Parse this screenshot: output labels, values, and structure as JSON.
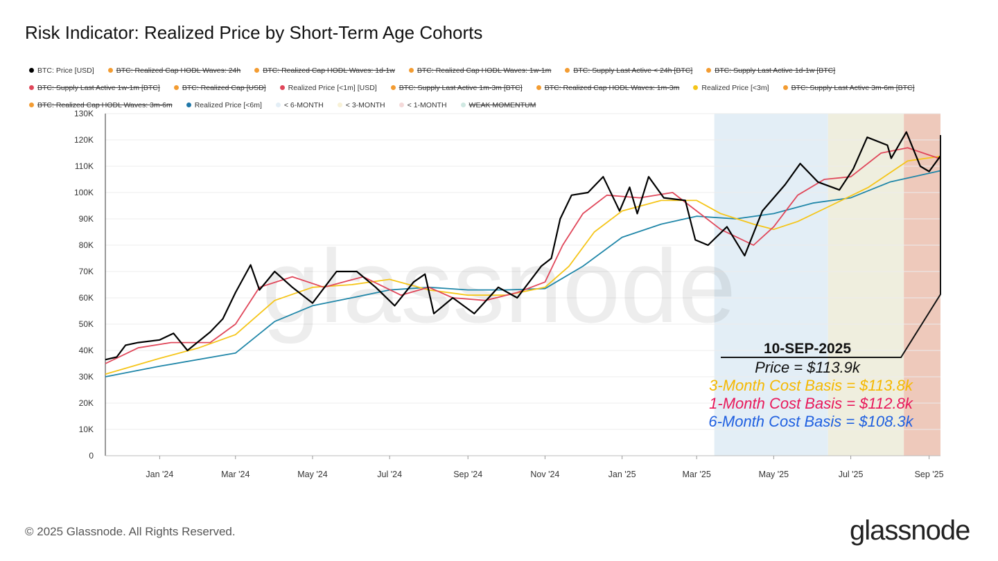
{
  "title": "Risk Indicator: Realized Price by Short-Term Age Cohorts",
  "footer": "© 2025 Glassnode. All Rights Reserved.",
  "logo": "glassnode",
  "watermark": "glassnode",
  "legend": [
    {
      "label": "BTC: Price [USD]",
      "color": "#000000",
      "active": true
    },
    {
      "label": "BTC: Realized Cap HODL Waves: 24h",
      "color": "#f39c32",
      "active": false
    },
    {
      "label": "BTC: Realized Cap HODL Waves: 1d-1w",
      "color": "#f39c32",
      "active": false
    },
    {
      "label": "BTC: Realized Cap HODL Waves: 1w-1m",
      "color": "#f39c32",
      "active": false
    },
    {
      "label": "BTC: Supply Last Active < 24h [BTC]",
      "color": "#f39c32",
      "active": false
    },
    {
      "label": "BTC: Supply Last Active 1d-1w [BTC]",
      "color": "#f39c32",
      "active": false
    },
    {
      "label": "BTC: Supply Last Active 1w-1m [BTC]",
      "color": "#e0475a",
      "active": false
    },
    {
      "label": "BTC: Realized Cap [USD]",
      "color": "#f39c32",
      "active": false
    },
    {
      "label": "Realized Price [<1m] [USD]",
      "color": "#e0475a",
      "active": true
    },
    {
      "label": "BTC: Supply Last Active 1m-3m [BTC]",
      "color": "#f39c32",
      "active": false
    },
    {
      "label": "BTC: Realized Cap HODL Waves: 1m-3m",
      "color": "#f39c32",
      "active": false
    },
    {
      "label": "Realized Price [<3m]",
      "color": "#f5c518",
      "active": true
    },
    {
      "label": "BTC: Supply Last Active 3m-6m [BTC]",
      "color": "#f39c32",
      "active": false
    },
    {
      "label": "BTC: Realized Cap HODL Waves: 3m-6m",
      "color": "#f39c32",
      "active": false
    },
    {
      "label": "Realized Price [<6m]",
      "color": "#1f77a8",
      "active": true
    },
    {
      "label": "< 6-MONTH",
      "color": "#e3eef6",
      "active": true
    },
    {
      "label": "< 3-MONTH",
      "color": "#f8f1d6",
      "active": true
    },
    {
      "label": "< 1-MONTH",
      "color": "#f4d9d9",
      "active": true
    },
    {
      "label": "WEAK MOMENTUM",
      "color": "#cfe8e2",
      "active": false
    }
  ],
  "annotation": {
    "date": "10-SEP-2025",
    "price": "Price = $113.9k",
    "m3": "3-Month Cost Basis = $113.8k",
    "m1": "1-Month Cost Basis = $112.8k",
    "m6": "6-Month Cost Basis =  $108.3k",
    "colors": {
      "price": "#111111",
      "m3": "#f5b800",
      "m1": "#e8185a",
      "m6": "#1f5fe0"
    }
  },
  "chart_data": {
    "type": "line",
    "xlim": [
      "2023-11-19",
      "2025-09-10"
    ],
    "ylim": [
      0,
      130000
    ],
    "yticks": [
      0,
      10000,
      20000,
      30000,
      40000,
      50000,
      60000,
      70000,
      80000,
      90000,
      100000,
      110000,
      120000,
      130000
    ],
    "ytick_labels": [
      "0",
      "10K",
      "20K",
      "30K",
      "40K",
      "50K",
      "60K",
      "70K",
      "80K",
      "90K",
      "100K",
      "110K",
      "120K",
      "130K"
    ],
    "xticks": [
      "2024-01-01",
      "2024-03-01",
      "2024-05-01",
      "2024-07-01",
      "2024-09-01",
      "2024-11-01",
      "2025-01-01",
      "2025-03-01",
      "2025-05-01",
      "2025-07-01",
      "2025-09-01"
    ],
    "xtick_labels": [
      "Jan '24",
      "Mar '24",
      "May '24",
      "Jul '24",
      "Sep '24",
      "Nov '24",
      "Jan '25",
      "Mar '25",
      "May '25",
      "Jul '25",
      "Sep '25"
    ],
    "grid": true,
    "zones": [
      {
        "name": "< 6-MONTH",
        "from": "2025-03-15",
        "to": "2025-06-13",
        "color": "#e3eef6"
      },
      {
        "name": "< 3-MONTH",
        "from": "2025-06-13",
        "to": "2025-08-12",
        "color": "#efeede"
      },
      {
        "name": "< 1-MONTH",
        "from": "2025-08-12",
        "to": "2025-09-10",
        "color": "#eec9bb"
      }
    ],
    "series": [
      {
        "name": "Realized Price [<6m]",
        "color": "#1f86a8",
        "points": [
          [
            "2023-11-19",
            30000
          ],
          [
            "2024-01-01",
            34000
          ],
          [
            "2024-03-01",
            39000
          ],
          [
            "2024-04-01",
            51000
          ],
          [
            "2024-05-01",
            57000
          ],
          [
            "2024-06-01",
            60000
          ],
          [
            "2024-07-01",
            63000
          ],
          [
            "2024-08-01",
            64000
          ],
          [
            "2024-09-01",
            63000
          ],
          [
            "2024-10-01",
            63000
          ],
          [
            "2024-11-01",
            63500
          ],
          [
            "2024-12-01",
            72000
          ],
          [
            "2025-01-01",
            83000
          ],
          [
            "2025-02-01",
            88000
          ],
          [
            "2025-03-01",
            91000
          ],
          [
            "2025-04-01",
            90000
          ],
          [
            "2025-05-01",
            92000
          ],
          [
            "2025-06-01",
            96000
          ],
          [
            "2025-07-01",
            98000
          ],
          [
            "2025-08-01",
            104000
          ],
          [
            "2025-09-10",
            108300
          ]
        ]
      },
      {
        "name": "Realized Price [<3m]",
        "color": "#f5c518",
        "points": [
          [
            "2023-11-19",
            31000
          ],
          [
            "2024-01-01",
            37000
          ],
          [
            "2024-02-01",
            41000
          ],
          [
            "2024-03-01",
            46000
          ],
          [
            "2024-04-01",
            59000
          ],
          [
            "2024-05-01",
            64000
          ],
          [
            "2024-06-01",
            65000
          ],
          [
            "2024-07-01",
            67000
          ],
          [
            "2024-08-01",
            63000
          ],
          [
            "2024-09-01",
            61000
          ],
          [
            "2024-10-01",
            61000
          ],
          [
            "2024-11-01",
            64000
          ],
          [
            "2024-11-20",
            72000
          ],
          [
            "2024-12-10",
            85000
          ],
          [
            "2025-01-01",
            93000
          ],
          [
            "2025-02-01",
            97000
          ],
          [
            "2025-03-01",
            97000
          ],
          [
            "2025-03-20",
            92000
          ],
          [
            "2025-04-15",
            88000
          ],
          [
            "2025-05-01",
            86000
          ],
          [
            "2025-05-20",
            89000
          ],
          [
            "2025-06-15",
            95000
          ],
          [
            "2025-07-15",
            102000
          ],
          [
            "2025-08-15",
            112000
          ],
          [
            "2025-09-10",
            113800
          ]
        ]
      },
      {
        "name": "Realized Price [<1m] [USD]",
        "color": "#e0475a",
        "points": [
          [
            "2023-11-19",
            35000
          ],
          [
            "2023-12-15",
            41000
          ],
          [
            "2024-01-10",
            43000
          ],
          [
            "2024-02-10",
            43000
          ],
          [
            "2024-03-01",
            50000
          ],
          [
            "2024-03-20",
            64000
          ],
          [
            "2024-04-15",
            68000
          ],
          [
            "2024-05-10",
            64000
          ],
          [
            "2024-06-10",
            68000
          ],
          [
            "2024-07-10",
            61000
          ],
          [
            "2024-08-01",
            64000
          ],
          [
            "2024-08-20",
            60000
          ],
          [
            "2024-09-15",
            59000
          ],
          [
            "2024-10-10",
            62000
          ],
          [
            "2024-11-01",
            66000
          ],
          [
            "2024-11-15",
            80000
          ],
          [
            "2024-12-01",
            92000
          ],
          [
            "2024-12-20",
            99000
          ],
          [
            "2025-01-15",
            98000
          ],
          [
            "2025-02-10",
            100000
          ],
          [
            "2025-03-01",
            93000
          ],
          [
            "2025-03-20",
            86000
          ],
          [
            "2025-04-15",
            80000
          ],
          [
            "2025-05-01",
            87000
          ],
          [
            "2025-05-20",
            99000
          ],
          [
            "2025-06-10",
            105000
          ],
          [
            "2025-07-01",
            106000
          ],
          [
            "2025-07-25",
            115000
          ],
          [
            "2025-08-15",
            117000
          ],
          [
            "2025-09-10",
            112800
          ]
        ]
      },
      {
        "name": "BTC: Price [USD]",
        "color": "#000000",
        "points": [
          [
            "2023-11-19",
            36500
          ],
          [
            "2023-11-28",
            37500
          ],
          [
            "2023-12-05",
            42000
          ],
          [
            "2023-12-15",
            43000
          ],
          [
            "2024-01-01",
            44000
          ],
          [
            "2024-01-12",
            46500
          ],
          [
            "2024-01-23",
            40000
          ],
          [
            "2024-02-10",
            47000
          ],
          [
            "2024-02-20",
            52000
          ],
          [
            "2024-03-01",
            62000
          ],
          [
            "2024-03-13",
            72500
          ],
          [
            "2024-03-20",
            63000
          ],
          [
            "2024-04-01",
            70000
          ],
          [
            "2024-04-15",
            64000
          ],
          [
            "2024-05-01",
            58000
          ],
          [
            "2024-05-20",
            70000
          ],
          [
            "2024-06-05",
            70000
          ],
          [
            "2024-06-20",
            64000
          ],
          [
            "2024-07-05",
            57000
          ],
          [
            "2024-07-20",
            66000
          ],
          [
            "2024-07-29",
            69000
          ],
          [
            "2024-08-05",
            54000
          ],
          [
            "2024-08-20",
            60000
          ],
          [
            "2024-09-06",
            54000
          ],
          [
            "2024-09-25",
            64000
          ],
          [
            "2024-10-10",
            60000
          ],
          [
            "2024-10-29",
            72000
          ],
          [
            "2024-11-06",
            75000
          ],
          [
            "2024-11-13",
            90000
          ],
          [
            "2024-11-22",
            99000
          ],
          [
            "2024-12-05",
            100000
          ],
          [
            "2024-12-17",
            106000
          ],
          [
            "2024-12-30",
            93000
          ],
          [
            "2025-01-07",
            102000
          ],
          [
            "2025-01-13",
            92000
          ],
          [
            "2025-01-22",
            106000
          ],
          [
            "2025-02-03",
            98000
          ],
          [
            "2025-02-20",
            97000
          ],
          [
            "2025-02-28",
            82000
          ],
          [
            "2025-03-10",
            80000
          ],
          [
            "2025-03-25",
            87000
          ],
          [
            "2025-04-08",
            76000
          ],
          [
            "2025-04-22",
            93000
          ],
          [
            "2025-05-10",
            103000
          ],
          [
            "2025-05-22",
            111000
          ],
          [
            "2025-06-05",
            104000
          ],
          [
            "2025-06-22",
            101000
          ],
          [
            "2025-07-03",
            109000
          ],
          [
            "2025-07-14",
            121000
          ],
          [
            "2025-07-30",
            118000
          ],
          [
            "2025-08-02",
            113000
          ],
          [
            "2025-08-14",
            123000
          ],
          [
            "2025-08-25",
            110000
          ],
          [
            "2025-09-01",
            108000
          ],
          [
            "2025-09-10",
            113900
          ]
        ]
      }
    ]
  }
}
